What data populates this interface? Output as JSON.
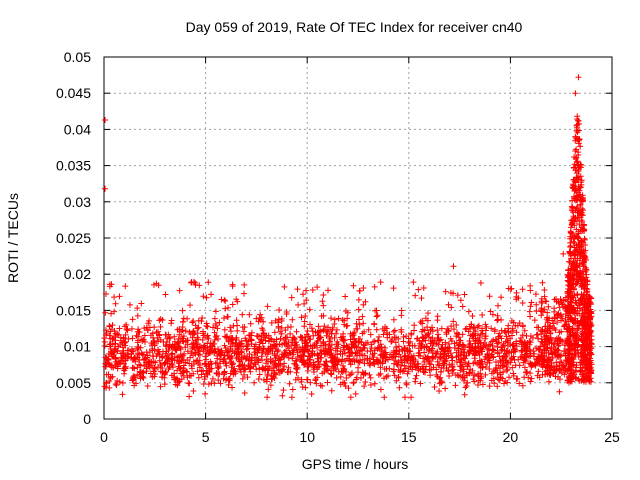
{
  "chart_data": {
    "type": "scatter",
    "title": "Day 059 of 2019, Rate Of TEC Index for receiver cn40",
    "xlabel": "GPS time / hours",
    "ylabel": "ROTI / TECUs",
    "xlim": [
      0,
      25
    ],
    "ylim": [
      0,
      0.05
    ],
    "grid": true,
    "x_ticks": [
      0,
      5,
      10,
      15,
      20,
      25
    ],
    "y_ticks": [
      0,
      0.005,
      0.01,
      0.015,
      0.02,
      0.025,
      0.03,
      0.035,
      0.04,
      0.045,
      0.05
    ],
    "x_tick_labels": [
      "0",
      "5",
      "10",
      "15",
      "20",
      "25"
    ],
    "y_tick_labels": [
      "0",
      "0.005",
      "0.01",
      "0.015",
      "0.02",
      "0.025",
      "0.03",
      "0.035",
      "0.04",
      "0.045",
      "0.05"
    ],
    "marker": "+",
    "color": "#ff0000",
    "series": [
      {
        "name": "ROTI",
        "summary": [
          {
            "time_range": [
              0,
              22.5
            ],
            "typical_range": [
              0.004,
              0.016
            ],
            "center": 0.009
          },
          {
            "time_range": [
              22.8,
              24.0
            ],
            "typical_range": [
              0.005,
              0.04
            ],
            "center": 0.015
          }
        ],
        "notable_points": [
          {
            "x": 0.05,
            "y": 0.0413
          },
          {
            "x": 0.05,
            "y": 0.0318
          },
          {
            "x": 17.2,
            "y": 0.0211
          },
          {
            "x": 23.35,
            "y": 0.0472
          },
          {
            "x": 23.2,
            "y": 0.045
          },
          {
            "x": 22.6,
            "y": 0.0228
          }
        ]
      }
    ]
  }
}
